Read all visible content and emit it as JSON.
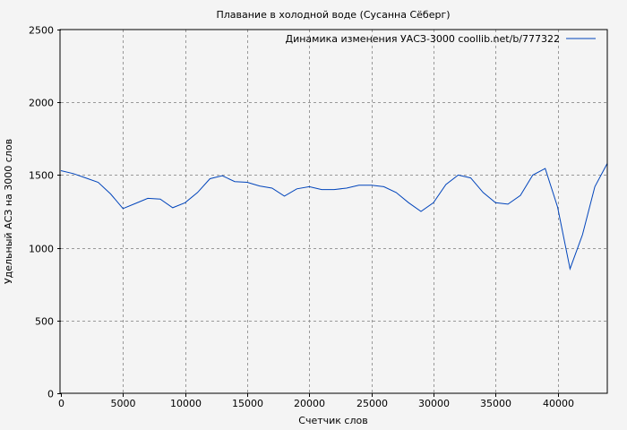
{
  "chart_data": {
    "type": "line",
    "title": "Плавание в холодной воде (Сусанна Сёберг)",
    "xlabel": "Счетчик слов",
    "ylabel": "Удельный АСЗ на 3000 слов",
    "xlim": [
      0,
      44000
    ],
    "ylim": [
      0,
      2500
    ],
    "xticks": [
      0,
      5000,
      10000,
      15000,
      20000,
      25000,
      30000,
      35000,
      40000
    ],
    "yticks": [
      0,
      500,
      1000,
      1500,
      2000,
      2500
    ],
    "grid": true,
    "legend_position": "top-right",
    "colors": {
      "line": "#0044bb",
      "background": "#f4f4f4",
      "grid": "#999999"
    },
    "series": [
      {
        "name": "Динамика изменения УАСЗ-3000 coollib.net/b/777322",
        "x": [
          0,
          1000,
          2000,
          3000,
          4000,
          5000,
          6000,
          7000,
          8000,
          9000,
          10000,
          11000,
          12000,
          13000,
          14000,
          15000,
          16000,
          17000,
          18000,
          19000,
          20000,
          21000,
          22000,
          23000,
          24000,
          25000,
          26000,
          27000,
          28000,
          29000,
          30000,
          31000,
          32000,
          33000,
          34000,
          35000,
          36000,
          37000,
          38000,
          39000,
          40000,
          41000,
          42000,
          43000,
          44000
        ],
        "y": [
          1530,
          1510,
          1480,
          1450,
          1370,
          1270,
          1305,
          1340,
          1335,
          1275,
          1310,
          1380,
          1475,
          1495,
          1455,
          1450,
          1425,
          1410,
          1355,
          1405,
          1420,
          1400,
          1400,
          1410,
          1430,
          1430,
          1420,
          1380,
          1310,
          1250,
          1310,
          1435,
          1500,
          1480,
          1380,
          1310,
          1300,
          1360,
          1500,
          1545,
          1280,
          855,
          1090,
          1420,
          1580
        ]
      }
    ]
  }
}
